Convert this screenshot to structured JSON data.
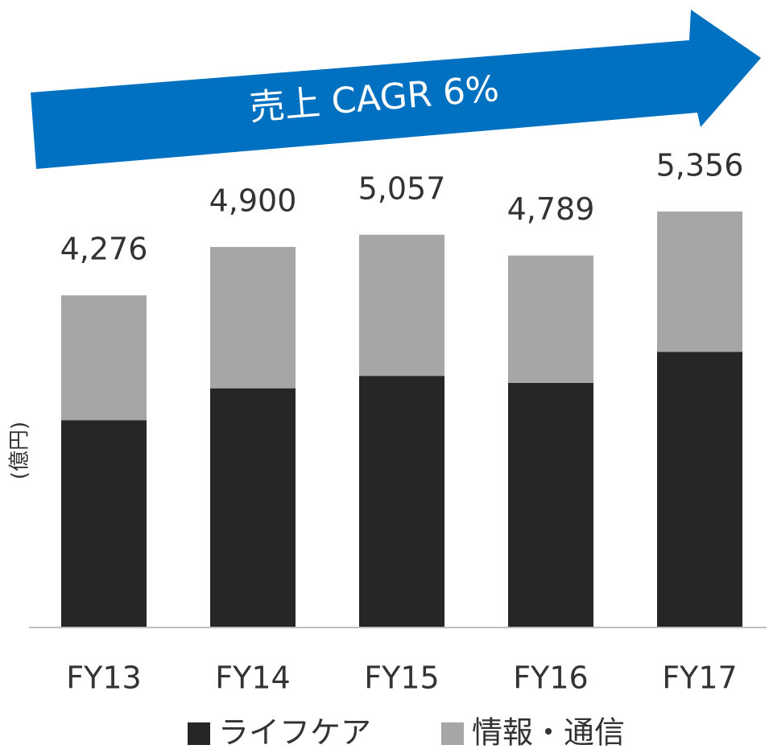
{
  "chart_data": {
    "type": "stacked_bar",
    "annotation": "売上 CAGR 6%",
    "y_label": "(億円)",
    "categories": [
      "FY13",
      "FY14",
      "FY15",
      "FY16",
      "FY17"
    ],
    "series": [
      {
        "name": "ライフケア",
        "color": "#262626",
        "values": [
          2670,
          3080,
          3240,
          3150,
          3550
        ]
      },
      {
        "name": "情報・通信",
        "color": "#a6a6a6",
        "values": [
          1606,
          1820,
          1817,
          1639,
          1806
        ]
      }
    ],
    "totals": [
      4276,
      4900,
      5057,
      4789,
      5356
    ],
    "total_labels": [
      "4,276",
      "4,900",
      "5,057",
      "4,789",
      "5,356"
    ],
    "ylim": [
      0,
      5500
    ]
  }
}
